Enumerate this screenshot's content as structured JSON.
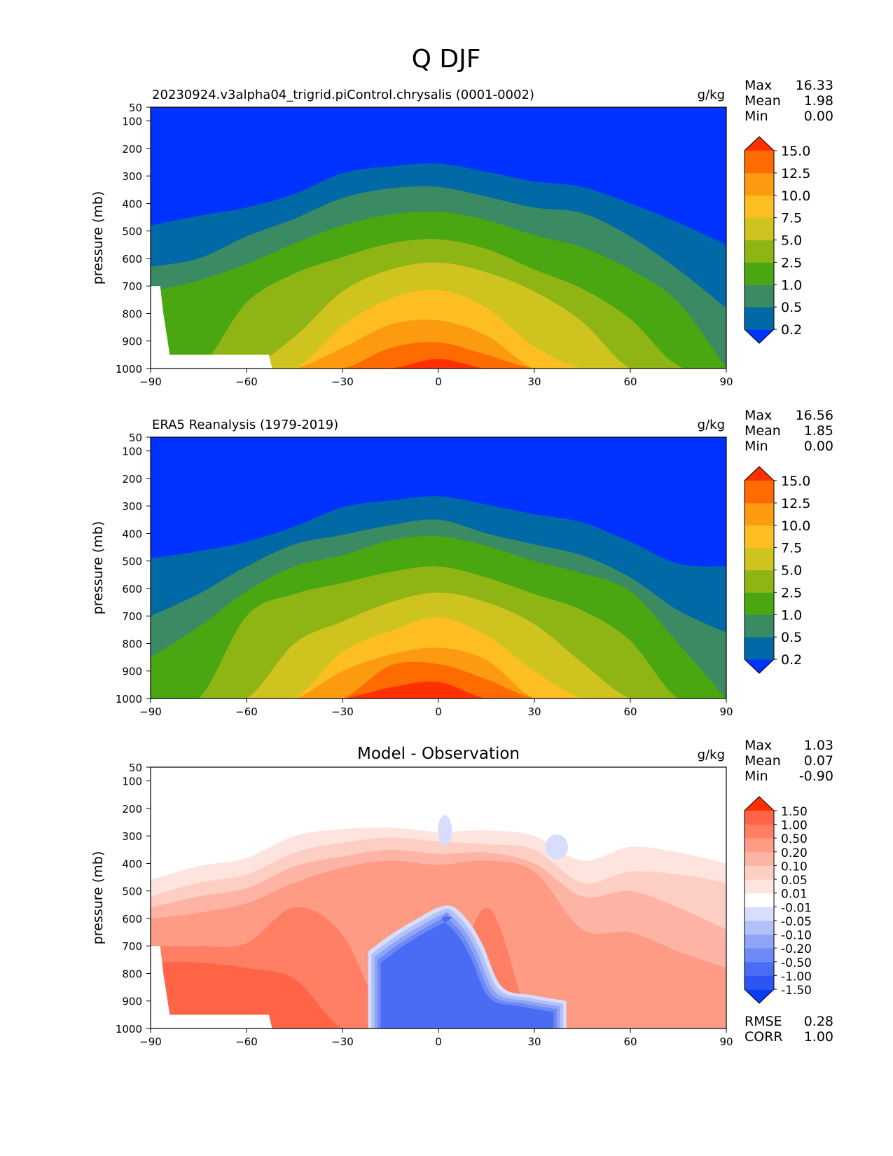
{
  "figure": {
    "title": "Q DJF"
  },
  "colormaps": {
    "q_levels": [
      0.2,
      0.5,
      1.0,
      2.5,
      5.0,
      7.5,
      10.0,
      12.5,
      15.0
    ],
    "q_colors": [
      "#0033ff",
      "#0069a6",
      "#3a8a63",
      "#4aa611",
      "#8fb515",
      "#cfc320",
      "#fdbe22",
      "#fd9b10",
      "#fe6b00",
      "#ff3000"
    ],
    "q_tick_labels": [
      "0.2",
      "0.5",
      "1.0",
      "2.5",
      "5.0",
      "7.5",
      "10.0",
      "12.5",
      "15.0"
    ],
    "diff_levels": [
      -1.5,
      -1.0,
      -0.5,
      -0.2,
      -0.1,
      -0.05,
      -0.01,
      0.01,
      0.05,
      0.1,
      0.2,
      0.5,
      1.0,
      1.5
    ],
    "diff_colors": [
      "#0a3cf6",
      "#2d55f3",
      "#4a6cf4",
      "#6c89f4",
      "#8fa4f6",
      "#b3c1f9",
      "#d6defc",
      "#ffffff",
      "#fde4de",
      "#fdcfc4",
      "#fdb4a4",
      "#fd9b85",
      "#fe7f64",
      "#ff6446",
      "#ff3000"
    ],
    "diff_tick_labels": [
      "-1.50",
      "-1.00",
      "-0.50",
      "-0.20",
      "-0.10",
      "-0.05",
      "-0.01",
      "0.01",
      "0.05",
      "0.10",
      "0.20",
      "0.50",
      "1.00",
      "1.50"
    ]
  },
  "chart_data": [
    {
      "type": "heatmap",
      "title": "20230924.v3alpha04_trigrid.piControl.chrysalis (0001-0002)",
      "units": "g/kg",
      "ylabel": "pressure (mb)",
      "xlim": [
        -90,
        90
      ],
      "ylim": [
        1000,
        50
      ],
      "x_ticks": [
        "−90",
        "−60",
        "−30",
        "0",
        "30",
        "60",
        "90"
      ],
      "y_ticks": [
        "50",
        "100",
        "200",
        "300",
        "400",
        "500",
        "600",
        "700",
        "800",
        "900",
        "1000"
      ],
      "stats": [
        {
          "label": "Max",
          "value": "16.33"
        },
        {
          "label": "Mean",
          "value": "1.98"
        },
        {
          "label": "Min",
          "value": "0.00"
        }
      ],
      "colorbar": "q",
      "contour_tops_hpa": {
        "lat": [
          -90,
          -75,
          -60,
          -45,
          -30,
          -15,
          0,
          15,
          30,
          45,
          60,
          75,
          90
        ],
        "0.2": [
          480,
          445,
          415,
          365,
          290,
          265,
          255,
          285,
          320,
          340,
          400,
          470,
          550
        ],
        "0.5": [
          630,
          600,
          520,
          455,
          380,
          345,
          340,
          375,
          415,
          435,
          520,
          640,
          780
        ],
        "1.0": [
          720,
          680,
          620,
          545,
          480,
          440,
          430,
          460,
          515,
          560,
          640,
          760,
          1000
        ],
        "2.5": [
          1000,
          1000,
          760,
          655,
          595,
          545,
          530,
          565,
          640,
          710,
          820,
          990,
          1000
        ],
        "5.0": [
          1000,
          1000,
          1000,
          885,
          720,
          640,
          615,
          650,
          720,
          830,
          1000,
          1000,
          1000
        ],
        "7.5": [
          1000,
          1000,
          1000,
          1000,
          845,
          745,
          715,
          780,
          920,
          1000,
          1000,
          1000,
          1000
        ],
        "10.0": [
          1000,
          1000,
          1000,
          1000,
          925,
          840,
          825,
          880,
          1000,
          1000,
          1000,
          1000,
          1000
        ],
        "12.5": [
          1000,
          1000,
          1000,
          1000,
          1000,
          925,
          905,
          950,
          1000,
          1000,
          1000,
          1000,
          1000
        ],
        "15.0": [
          1000,
          1000,
          1000,
          1000,
          1000,
          1000,
          965,
          1000,
          1000,
          1000,
          1000,
          1000,
          1000
        ]
      },
      "missing_region": "topography mask south of about 52S below about 700 mb"
    },
    {
      "type": "heatmap",
      "title": "ERA5 Reanalysis (1979-2019)",
      "units": "g/kg",
      "ylabel": "pressure (mb)",
      "xlim": [
        -90,
        90
      ],
      "ylim": [
        1000,
        50
      ],
      "x_ticks": [
        "−90",
        "−60",
        "−30",
        "0",
        "30",
        "60",
        "90"
      ],
      "y_ticks": [
        "50",
        "100",
        "200",
        "300",
        "400",
        "500",
        "600",
        "700",
        "800",
        "900",
        "1000"
      ],
      "stats": [
        {
          "label": "Max",
          "value": "16.56"
        },
        {
          "label": "Mean",
          "value": "1.85"
        },
        {
          "label": "Min",
          "value": "0.00"
        }
      ],
      "colorbar": "q",
      "contour_tops_hpa": {
        "lat": [
          -90,
          -75,
          -60,
          -45,
          -30,
          -15,
          0,
          15,
          30,
          45,
          60,
          75,
          90
        ],
        "0.2": [
          490,
          465,
          430,
          375,
          305,
          280,
          265,
          295,
          330,
          360,
          430,
          510,
          520
        ],
        "0.5": [
          700,
          620,
          520,
          440,
          405,
          370,
          350,
          400,
          440,
          480,
          560,
          680,
          760
        ],
        "1.0": [
          850,
          740,
          610,
          520,
          480,
          425,
          410,
          445,
          500,
          545,
          610,
          800,
          1000
        ],
        "2.5": [
          1000,
          1000,
          700,
          620,
          580,
          540,
          520,
          560,
          620,
          680,
          790,
          1000,
          1000
        ],
        "5.0": [
          1000,
          1000,
          1000,
          800,
          720,
          650,
          615,
          650,
          730,
          870,
          1000,
          1000,
          1000
        ],
        "7.5": [
          1000,
          1000,
          1000,
          1000,
          830,
          755,
          705,
          770,
          900,
          1000,
          1000,
          1000,
          1000
        ],
        "10.0": [
          1000,
          1000,
          1000,
          1000,
          900,
          840,
          815,
          860,
          1000,
          1000,
          1000,
          1000,
          1000
        ],
        "12.5": [
          1000,
          1000,
          1000,
          1000,
          1000,
          880,
          875,
          930,
          1000,
          1000,
          1000,
          1000,
          1000
        ],
        "15.0": [
          1000,
          1000,
          1000,
          1000,
          1000,
          960,
          940,
          1000,
          1000,
          1000,
          1000,
          1000,
          1000
        ]
      }
    },
    {
      "type": "heatmap",
      "title": "Model - Observation",
      "units": "g/kg",
      "ylabel": "pressure (mb)",
      "xlim": [
        -90,
        90
      ],
      "ylim": [
        1000,
        50
      ],
      "x_ticks": [
        "−90",
        "−60",
        "−30",
        "0",
        "30",
        "60",
        "90"
      ],
      "y_ticks": [
        "50",
        "100",
        "200",
        "300",
        "400",
        "500",
        "600",
        "700",
        "800",
        "900",
        "1000"
      ],
      "stats": [
        {
          "label": "Max",
          "value": "1.03"
        },
        {
          "label": "Mean",
          "value": "0.07"
        },
        {
          "label": "Min",
          "value": "-0.90"
        }
      ],
      "extra_stats": [
        {
          "label": "RMSE",
          "value": "0.28"
        },
        {
          "label": "CORR",
          "value": "1.00"
        }
      ],
      "colorbar": "diff",
      "positive_contour_tops_hpa": {
        "lat": [
          -90,
          -75,
          -60,
          -45,
          -30,
          -15,
          0,
          15,
          30,
          45,
          60,
          75,
          90
        ],
        "0.01": [
          460,
          410,
          380,
          300,
          275,
          270,
          1000,
          280,
          300,
          390,
          340,
          360,
          400
        ],
        "0.05": [
          520,
          470,
          440,
          360,
          325,
          305,
          1000,
          330,
          350,
          470,
          430,
          440,
          470
        ],
        "0.1": [
          560,
          520,
          490,
          410,
          375,
          350,
          1000,
          360,
          400,
          520,
          500,
          560,
          640
        ],
        "0.2": [
          600,
          580,
          545,
          470,
          415,
          390,
          1000,
          390,
          430,
          640,
          650,
          720,
          780
        ],
        "0.5": [
          700,
          700,
          690,
          560,
          660,
          1000,
          1000,
          560,
          1000,
          1000,
          1000,
          1000,
          1000
        ],
        "1.0": [
          760,
          760,
          780,
          820,
          1000,
          1000,
          1000,
          1000,
          1000,
          1000,
          1000,
          1000,
          1000
        ]
      },
      "negative_region": {
        "lat": [
          -22,
          -15,
          -8,
          0,
          5,
          10,
          14,
          20,
          30,
          40
        ],
        "top_hpa": [
          720,
          660,
          610,
          560,
          560,
          620,
          700,
          850,
          880,
          900
        ],
        "minimum": -0.5
      }
    }
  ]
}
